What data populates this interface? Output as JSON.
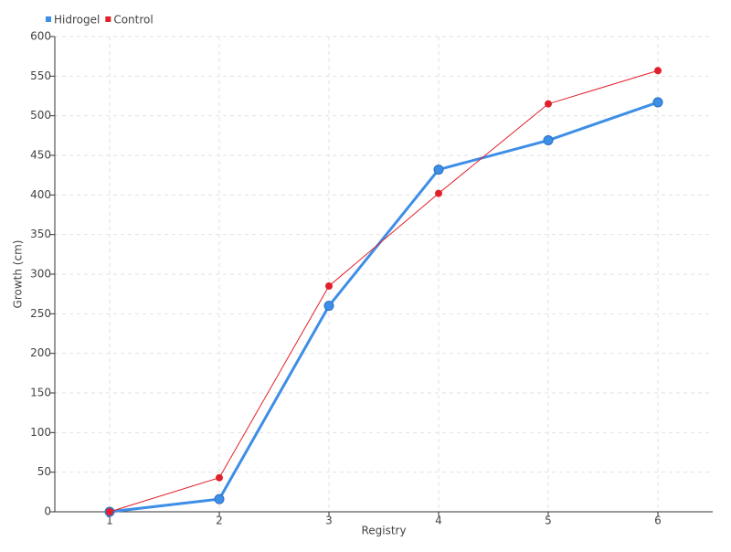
{
  "chart_data": {
    "type": "line",
    "x_label": "Registry",
    "y_label": "Growth (cm)",
    "x": [
      1,
      2,
      3,
      4,
      5,
      6
    ],
    "xlim": [
      0.5,
      6.5
    ],
    "xticks": [
      1,
      2,
      3,
      4,
      5,
      6
    ],
    "ylim": [
      0,
      600
    ],
    "yticks": [
      0,
      50,
      100,
      150,
      200,
      250,
      300,
      350,
      400,
      450,
      500,
      550,
      600
    ],
    "grid": true,
    "legend": "top-left",
    "series": [
      {
        "name": "Hidrogel",
        "color": "#3d8ee6",
        "values": [
          0,
          16,
          260,
          432,
          469,
          517
        ]
      },
      {
        "name": "Control",
        "color": "#e0202a",
        "values": [
          0,
          43,
          285,
          402,
          515,
          557
        ]
      }
    ]
  }
}
